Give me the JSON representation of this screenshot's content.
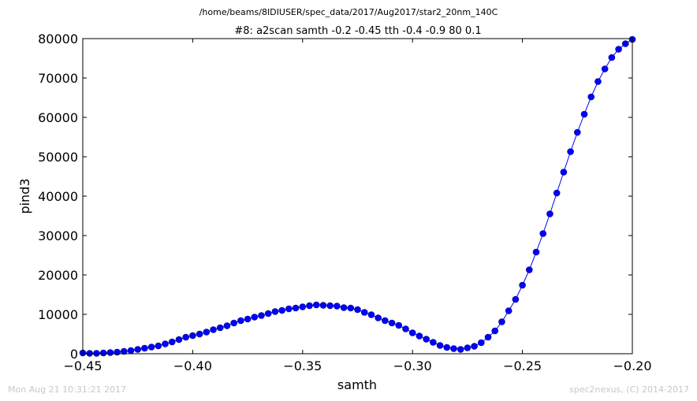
{
  "suptitle": "/home/beams/8IDIUSER/spec_data/2017/Aug2017/star2_20nm_140C",
  "footer_left": "Mon Aug 21 10:31:21 2017",
  "footer_right": "spec2nexus, (C) 2014-2017",
  "colors": {
    "line": "#0000ff",
    "marker_fill": "#0000ff",
    "marker_edge": "#000080",
    "frame": "#000000"
  },
  "chart_data": {
    "type": "line",
    "title": "#8: a2scan  samth -0.2 -0.45  tth -0.4 -0.9  80 0.1",
    "xlabel": "samth",
    "ylabel": "pind3",
    "xlim": [
      -0.45,
      -0.2
    ],
    "ylim": [
      0,
      80000
    ],
    "grid": false,
    "x_ticks": [
      -0.45,
      -0.4,
      -0.35,
      -0.3,
      -0.25,
      -0.2
    ],
    "x_tick_labels": [
      "−0.45",
      "−0.40",
      "−0.35",
      "−0.30",
      "−0.25",
      "−0.20"
    ],
    "y_ticks": [
      0,
      10000,
      20000,
      30000,
      40000,
      50000,
      60000,
      70000,
      80000
    ],
    "y_tick_labels": [
      "0",
      "10000",
      "20000",
      "30000",
      "40000",
      "50000",
      "60000",
      "70000",
      "80000"
    ],
    "series": [
      {
        "marker": "circle",
        "x": [
          -0.2,
          -0.203125,
          -0.20625,
          -0.209375,
          -0.2125,
          -0.215625,
          -0.21875,
          -0.221875,
          -0.225,
          -0.228125,
          -0.23125,
          -0.234375,
          -0.2375,
          -0.240625,
          -0.24375,
          -0.246875,
          -0.25,
          -0.253125,
          -0.25625,
          -0.259375,
          -0.2625,
          -0.265625,
          -0.26875,
          -0.271875,
          -0.275,
          -0.278125,
          -0.28125,
          -0.284375,
          -0.2875,
          -0.290625,
          -0.29375,
          -0.296875,
          -0.3,
          -0.303125,
          -0.30625,
          -0.309375,
          -0.3125,
          -0.315625,
          -0.31875,
          -0.321875,
          -0.325,
          -0.328125,
          -0.33125,
          -0.334375,
          -0.3375,
          -0.340625,
          -0.34375,
          -0.346875,
          -0.35,
          -0.353125,
          -0.35625,
          -0.359375,
          -0.3625,
          -0.365625,
          -0.36875,
          -0.371875,
          -0.375,
          -0.378125,
          -0.38125,
          -0.384375,
          -0.3875,
          -0.390625,
          -0.39375,
          -0.396875,
          -0.4,
          -0.403125,
          -0.40625,
          -0.409375,
          -0.4125,
          -0.415625,
          -0.41875,
          -0.421875,
          -0.425,
          -0.428125,
          -0.43125,
          -0.434375,
          -0.4375,
          -0.440625,
          -0.44375,
          -0.446875,
          -0.45
        ],
        "y": [
          79800,
          78700,
          77300,
          75200,
          72300,
          69100,
          65200,
          60800,
          56200,
          51300,
          46100,
          40800,
          35500,
          30500,
          25800,
          21300,
          17400,
          13800,
          10900,
          8100,
          5800,
          4200,
          2800,
          1900,
          1500,
          1100,
          1300,
          1600,
          2100,
          2900,
          3700,
          4500,
          5300,
          6300,
          7200,
          7800,
          8400,
          9100,
          9900,
          10500,
          11200,
          11600,
          11700,
          12100,
          12200,
          12300,
          12400,
          12200,
          11900,
          11600,
          11400,
          11000,
          10700,
          10200,
          9700,
          9300,
          8800,
          8400,
          7800,
          7100,
          6600,
          6100,
          5500,
          5000,
          4600,
          4200,
          3600,
          3000,
          2500,
          2000,
          1700,
          1400,
          1100,
          800,
          600,
          400,
          300,
          200,
          100,
          100,
          200
        ]
      }
    ]
  }
}
